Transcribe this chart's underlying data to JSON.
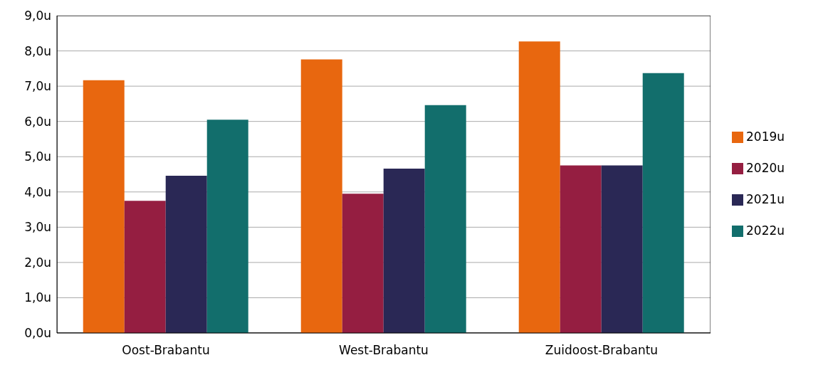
{
  "chart_data": {
    "type": "bar",
    "categories": [
      "Oost-Brabantu",
      "West-Brabantu",
      "Zuidoost-Brabantu"
    ],
    "series": [
      {
        "name": "2019u",
        "color": "#e8670f",
        "values": [
          7.17,
          7.76,
          8.27
        ]
      },
      {
        "name": "2020u",
        "color": "#951e41",
        "values": [
          3.75,
          3.95,
          4.75
        ]
      },
      {
        "name": "2021u",
        "color": "#2a2855",
        "values": [
          4.46,
          4.66,
          4.75
        ]
      },
      {
        "name": "2022u",
        "color": "#126e6c",
        "values": [
          6.05,
          6.46,
          7.37
        ]
      }
    ],
    "ylim": [
      0,
      9
    ],
    "yticks": [
      {
        "value": 0,
        "label": "0,0u"
      },
      {
        "value": 1,
        "label": "1,0u"
      },
      {
        "value": 2,
        "label": "2,0u"
      },
      {
        "value": 3,
        "label": "3,0u"
      },
      {
        "value": 4,
        "label": "4,0u"
      },
      {
        "value": 5,
        "label": "5,0u"
      },
      {
        "value": 6,
        "label": "6,0u"
      },
      {
        "value": 7,
        "label": "7,0u"
      },
      {
        "value": 8,
        "label": "8,0u"
      },
      {
        "value": 9,
        "label": "9,0u"
      }
    ],
    "grid": "y",
    "legend": "right"
  }
}
